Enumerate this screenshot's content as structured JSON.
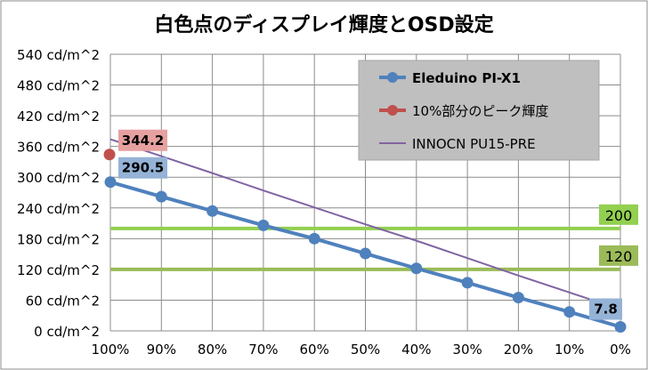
{
  "chart_data": {
    "type": "line",
    "title": "白色点のディスプレイ輝度とOSD設定",
    "categories": [
      "100%",
      "90%",
      "80%",
      "70%",
      "60%",
      "50%",
      "40%",
      "30%",
      "20%",
      "10%",
      "0%"
    ],
    "ylim": [
      0,
      540
    ],
    "yticks": [
      0,
      60,
      120,
      180,
      240,
      300,
      360,
      420,
      480,
      540
    ],
    "ytick_labels": [
      "0 cd/m^2",
      "60 cd/m^2",
      "120 cd/m^2",
      "180 cd/m^2",
      "240 cd/m^2",
      "300 cd/m^2",
      "360 cd/m^2",
      "420 cd/m^2",
      "480 cd/m^2",
      "540 cd/m^2"
    ],
    "grid": true,
    "legend_position": "top-right",
    "series": [
      {
        "name": "Eleduino PI-X1",
        "color": "#4f81bd",
        "marker": "circle",
        "values": [
          290.5,
          262,
          234,
          206,
          180,
          151,
          122,
          94,
          65,
          37,
          7.8
        ]
      },
      {
        "name": "10%部分のピーク輝度",
        "color": "#c0504d",
        "marker": "circle",
        "values": [
          344.2,
          null,
          null,
          null,
          null,
          null,
          null,
          null,
          null,
          null,
          null
        ]
      },
      {
        "name": "INNOCN PU15-PRE",
        "color": "#8064a2",
        "marker": "none",
        "values": [
          374,
          341,
          308,
          274,
          241,
          208,
          176,
          142,
          108,
          75,
          42
        ]
      }
    ],
    "reference_lines": [
      {
        "value": 200,
        "label": "200",
        "color": "#92d050"
      },
      {
        "value": 120,
        "label": "120",
        "color": "#9bbb59"
      }
    ],
    "data_labels": [
      {
        "text": "344.2",
        "series": "10%部分のピーク輝度",
        "category": "100%",
        "value": 344.2,
        "bg": "#e6a0a0"
      },
      {
        "text": "290.5",
        "series": "Eleduino PI-X1",
        "category": "100%",
        "value": 290.5,
        "bg": "#95b3d7"
      },
      {
        "text": "7.8",
        "series": "Eleduino PI-X1",
        "category": "0%",
        "value": 7.8,
        "bg": "#95b3d7"
      }
    ]
  }
}
